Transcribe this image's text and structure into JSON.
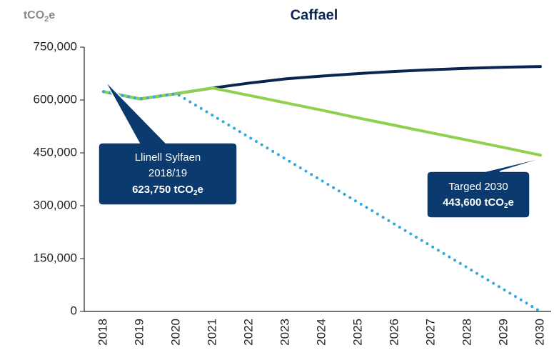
{
  "chart_data": {
    "type": "line",
    "title": "Caffael",
    "ylabel": [
      "tCO",
      "2",
      "e"
    ],
    "categories": [
      "2018",
      "2019",
      "2020",
      "2021",
      "2022",
      "2023",
      "2024",
      "2025",
      "2026",
      "2027",
      "2028",
      "2029",
      "2030"
    ],
    "series": [
      {
        "color": "#0a2650",
        "style": "solid",
        "values": [
          623750,
          603000,
          618000,
          634000,
          648000,
          660000,
          668000,
          675000,
          681000,
          686000,
          690000,
          693000,
          695000
        ]
      },
      {
        "color": "#8fd14f",
        "style": "solid",
        "values": [
          623750,
          603000,
          618000,
          634000,
          613000,
          592000,
          571000,
          549000,
          528000,
          507000,
          486000,
          465000,
          443600
        ]
      },
      {
        "color": "#2fa8e0",
        "style": "dotted",
        "values": [
          623750,
          603000,
          618000,
          556200,
          494400,
          432600,
          370800,
          309000,
          247200,
          185400,
          123600,
          61800,
          0
        ]
      }
    ],
    "ylim": [
      0,
      750000
    ],
    "yticks": [
      0,
      {
        "value": 150000,
        "label": "150,000"
      },
      {
        "value": 300000,
        "label": "300,000"
      },
      {
        "value": 450000,
        "label": "450,000"
      },
      {
        "value": 600000,
        "label": "600,000"
      },
      {
        "value": 750000,
        "label": "750,000"
      }
    ],
    "grid": false,
    "annotations": [
      {
        "lines": [
          "Llinell Sylfaen",
          "2018/19"
        ],
        "bold": [
          "623,750 tCO",
          "2",
          "e"
        ]
      },
      {
        "lines": [
          "Targed 2030"
        ],
        "bold": [
          "443,600 tCO",
          "2",
          "e"
        ]
      }
    ]
  }
}
